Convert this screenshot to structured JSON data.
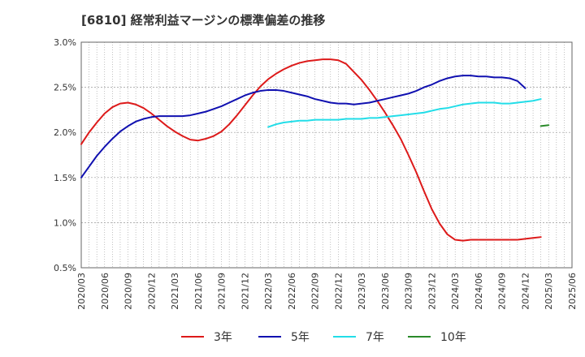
{
  "chart_data": {
    "type": "line",
    "title": "[6810]  経常利益マージンの標準偏差の推移",
    "xlabel": "",
    "ylabel": "",
    "x_tick_labels": [
      "2020/03",
      "2020/06",
      "2020/09",
      "2020/12",
      "2021/03",
      "2021/06",
      "2021/09",
      "2021/12",
      "2022/03",
      "2022/06",
      "2022/09",
      "2022/12",
      "2023/03",
      "2023/06",
      "2023/09",
      "2023/12",
      "2024/03",
      "2024/06",
      "2024/09",
      "2024/12",
      "2025/03",
      "2025/06"
    ],
    "y_ticks": [
      0.5,
      1.0,
      1.5,
      2.0,
      2.5,
      3.0
    ],
    "y_tick_labels": [
      "0.5%",
      "1.0%",
      "1.5%",
      "2.0%",
      "2.5%",
      "3.0%"
    ],
    "ylim": [
      0.5,
      3.0
    ],
    "x_months": [
      "2020-03",
      "2025-06"
    ],
    "grid": true,
    "legend_position": "bottom",
    "series": [
      {
        "name": "3年",
        "color": "#dd1a1a",
        "start": "2020-03",
        "values": [
          1.87,
          2.0,
          2.11,
          2.21,
          2.28,
          2.32,
          2.33,
          2.31,
          2.27,
          2.21,
          2.14,
          2.07,
          2.01,
          1.96,
          1.92,
          1.91,
          1.93,
          1.96,
          2.01,
          2.09,
          2.19,
          2.3,
          2.41,
          2.51,
          2.59,
          2.65,
          2.7,
          2.74,
          2.77,
          2.79,
          2.8,
          2.81,
          2.81,
          2.8,
          2.76,
          2.67,
          2.58,
          2.47,
          2.35,
          2.22,
          2.08,
          1.93,
          1.75,
          1.56,
          1.35,
          1.15,
          0.99,
          0.87,
          0.81,
          0.8,
          0.81,
          0.81,
          0.81,
          0.81,
          0.81,
          0.81,
          0.81,
          0.82,
          0.83,
          0.84
        ]
      },
      {
        "name": "5年",
        "color": "#1010b0",
        "start": "2020-03",
        "values": [
          1.5,
          1.62,
          1.74,
          1.84,
          1.93,
          2.01,
          2.07,
          2.12,
          2.15,
          2.17,
          2.18,
          2.18,
          2.18,
          2.18,
          2.19,
          2.21,
          2.23,
          2.26,
          2.29,
          2.33,
          2.37,
          2.41,
          2.44,
          2.46,
          2.47,
          2.47,
          2.46,
          2.44,
          2.42,
          2.4,
          2.37,
          2.35,
          2.33,
          2.32,
          2.32,
          2.31,
          2.32,
          2.33,
          2.35,
          2.37,
          2.39,
          2.41,
          2.43,
          2.46,
          2.5,
          2.53,
          2.57,
          2.6,
          2.62,
          2.63,
          2.63,
          2.62,
          2.62,
          2.61,
          2.61,
          2.6,
          2.57,
          2.49
        ]
      },
      {
        "name": "7年",
        "color": "#22dde8",
        "start": "2022-03",
        "values": [
          2.06,
          2.09,
          2.11,
          2.12,
          2.13,
          2.13,
          2.14,
          2.14,
          2.14,
          2.14,
          2.15,
          2.15,
          2.15,
          2.16,
          2.16,
          2.17,
          2.18,
          2.19,
          2.2,
          2.21,
          2.22,
          2.24,
          2.26,
          2.27,
          2.29,
          2.31,
          2.32,
          2.33,
          2.33,
          2.33,
          2.32,
          2.32,
          2.33,
          2.34,
          2.35,
          2.37
        ]
      },
      {
        "name": "10年",
        "color": "#2a8a2a",
        "start": "2025-02",
        "values": [
          2.07,
          2.08
        ]
      }
    ]
  }
}
